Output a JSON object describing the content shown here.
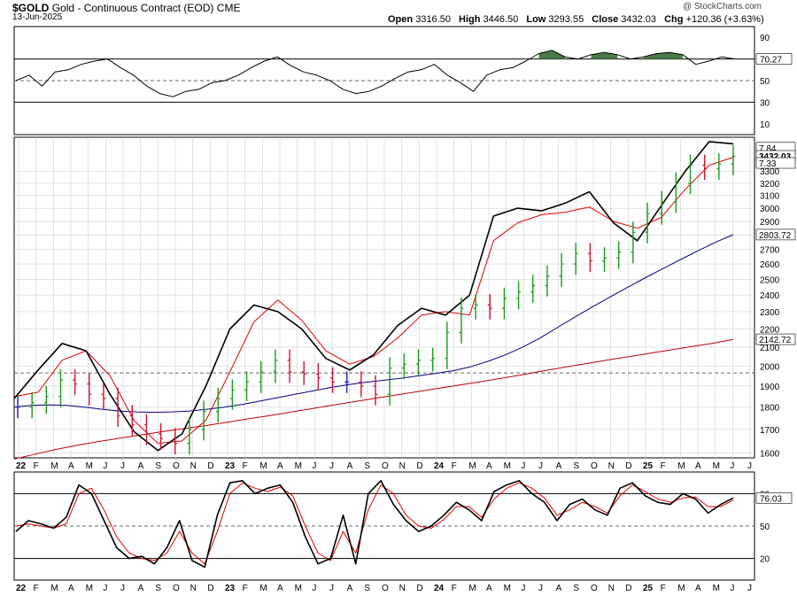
{
  "header": {
    "symbol": "$GOLD",
    "name": "Gold - Continuous Contract (EOD)",
    "exchange": "CME",
    "date": "13-Jun-2025",
    "watermark": "@ StockCharts.com",
    "open_label": "Open",
    "open": "3316.50",
    "high_label": "High",
    "high": "3446.50",
    "low_label": "Low",
    "low": "3293.55",
    "close_label": "Close",
    "close": "3432.03",
    "chg_label": "Chg",
    "chg": "+120.36 (+3.63%)"
  },
  "colors": {
    "up": "#1a9a1a",
    "down": "#d01030",
    "neutral": "#2020c0",
    "ma_short": "#e00000",
    "ma_mid": "#000080",
    "ma_long": "#c00000",
    "band": "#000000",
    "rsi_fill": "#4a7a4a",
    "grid": "#d0d0d0"
  },
  "chart_data": [
    {
      "type": "line",
      "panel": "RSI",
      "yticks": [
        "90",
        "70",
        "50",
        "30",
        "10"
      ],
      "ylim": [
        0,
        100
      ],
      "reference_lines": [
        70,
        50,
        30
      ],
      "last_value_label": "70.27",
      "series": [
        {
          "values": [
            50,
            55,
            45,
            58,
            60,
            65,
            68,
            70,
            62,
            55,
            45,
            38,
            35,
            40,
            42,
            48,
            50,
            55,
            62,
            68,
            72,
            64,
            58,
            55,
            50,
            42,
            38,
            40,
            45,
            52,
            58,
            60,
            65,
            55,
            48,
            40,
            55,
            60,
            62,
            68,
            75,
            78,
            72,
            70,
            74,
            76,
            74,
            70,
            72,
            75,
            76,
            74,
            65,
            68,
            72,
            70
          ]
        }
      ]
    },
    {
      "type": "line",
      "panel": "Price",
      "scale": "log",
      "ylim": [
        1580,
        3600
      ],
      "yticks": [
        "3300",
        "3200",
        "3100",
        "3000",
        "2900",
        "2800",
        "2700",
        "2600",
        "2500",
        "2400",
        "2300",
        "2200",
        "2100",
        "2000",
        "1900",
        "1800",
        "1700",
        "1600"
      ],
      "xticks": [
        "22",
        "F",
        "M",
        "A",
        "M",
        "J",
        "J",
        "A",
        "S",
        "O",
        "N",
        "D",
        "23",
        "F",
        "M",
        "A",
        "M",
        "J",
        "J",
        "A",
        "S",
        "O",
        "N",
        "D",
        "24",
        "F",
        "M",
        "A",
        "M",
        "J",
        "J",
        "A",
        "S",
        "O",
        "N",
        "D",
        "25",
        "F",
        "M",
        "A",
        "M",
        "J",
        "J"
      ],
      "right_labels": [
        "7.84",
        "3432.03",
        "7.33",
        "2803.72",
        "2142.72"
      ],
      "series": [
        {
          "values": [
            1800,
            1820,
            1850,
            1930,
            1910,
            1860,
            1840,
            1760,
            1720,
            1680,
            1660,
            1640,
            1700,
            1780,
            1840,
            1880,
            1920,
            1970,
            2030,
            1970,
            1960,
            1940,
            1920,
            1920,
            1900,
            1860,
            1990,
            2010,
            2030,
            2040,
            2180,
            2320,
            2340,
            2320,
            2380,
            2420,
            2460,
            2520,
            2600,
            2670,
            2620,
            2640,
            2680,
            2820,
            2960,
            3050,
            3200,
            3350,
            3320,
            3360,
            3430
          ]
        },
        {
          "values": [
            1790,
            1810,
            1830,
            1870,
            1890,
            1880,
            1860,
            1820,
            1770,
            1730,
            1690,
            1670,
            1680,
            1730,
            1790,
            1860,
            1910,
            1950,
            1990,
            1990,
            1970,
            1950,
            1940,
            1930,
            1920,
            1900,
            1950,
            1990,
            2020,
            2040,
            2120,
            2250,
            2330,
            2350,
            2370,
            2400,
            2450,
            2490,
            2560,
            2630,
            2640,
            2640,
            2660,
            2760,
            2880,
            2990,
            3120,
            3260,
            3310,
            3350,
            3400
          ]
        },
        {
          "values": [
            1800,
            1808,
            1810,
            1808,
            1800,
            1790,
            1782,
            1778,
            1776,
            1778,
            1782,
            1790,
            1800,
            1812,
            1828,
            1844,
            1860,
            1876,
            1892,
            1906,
            1918,
            1928,
            1938,
            1950,
            1962,
            1976,
            1996,
            2024,
            2058,
            2100,
            2150,
            2210,
            2270,
            2330,
            2390,
            2450,
            2510,
            2570,
            2630,
            2690,
            2750,
            2803
          ]
        },
        {
          "values": [
            1575,
            1595,
            1615,
            1632,
            1648,
            1662,
            1676,
            1690,
            1703,
            1716,
            1730,
            1746,
            1760,
            1776,
            1792,
            1808,
            1824,
            1840,
            1856,
            1872,
            1888,
            1904,
            1920,
            1938,
            1956,
            1975,
            1994,
            2012,
            2030,
            2048,
            2066,
            2084,
            2102,
            2120,
            2142
          ]
        },
        {
          "values": [
            1840,
            1980,
            2120,
            2080,
            1860,
            1690,
            1610,
            1680,
            1900,
            2200,
            2340,
            2300,
            2200,
            2040,
            1980,
            2060,
            2220,
            2320,
            2280,
            2400,
            2940,
            3000,
            2980,
            3040,
            3130,
            2890,
            2760,
            3020,
            3300,
            3560,
            3540
          ]
        },
        {
          "values": [
            1850,
            1870,
            2030,
            2080,
            1950,
            1740,
            1640,
            1650,
            1740,
            1970,
            2240,
            2370,
            2250,
            2080,
            2010,
            2050,
            2150,
            2280,
            2300,
            2280,
            2760,
            2890,
            2950,
            2970,
            3010,
            2900,
            2850,
            2930,
            3150,
            3350,
            3420
          ]
        }
      ]
    },
    {
      "type": "line",
      "panel": "Stochastic",
      "yticks": [
        "80",
        "50",
        "20"
      ],
      "ylim": [
        0,
        100
      ],
      "reference_lines": [
        80,
        50,
        20
      ],
      "last_value_label": "76.03",
      "series": [
        {
          "values": [
            45,
            55,
            52,
            48,
            58,
            88,
            80,
            55,
            30,
            20,
            22,
            15,
            30,
            55,
            18,
            12,
            60,
            90,
            92,
            80,
            85,
            88,
            72,
            40,
            15,
            20,
            60,
            15,
            80,
            92,
            70,
            55,
            45,
            50,
            60,
            72,
            65,
            55,
            82,
            88,
            92,
            80,
            72,
            55,
            70,
            75,
            65,
            60,
            85,
            90,
            78,
            72,
            70,
            80,
            75,
            62,
            70,
            76
          ]
        },
        {
          "values": [
            50,
            52,
            50,
            48,
            52,
            80,
            85,
            65,
            40,
            25,
            20,
            18,
            25,
            45,
            25,
            15,
            45,
            80,
            90,
            85,
            82,
            86,
            78,
            50,
            25,
            18,
            45,
            25,
            65,
            88,
            80,
            60,
            50,
            48,
            56,
            68,
            68,
            58,
            75,
            85,
            90,
            85,
            76,
            60,
            65,
            72,
            68,
            62,
            78,
            88,
            82,
            75,
            72,
            76,
            77,
            68,
            68,
            74
          ]
        }
      ]
    }
  ]
}
